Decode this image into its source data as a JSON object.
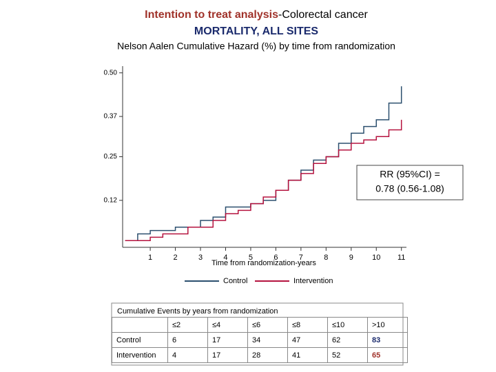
{
  "chart_data": {
    "type": "step",
    "title": {
      "part1": "Intention to treat analysis",
      "part2": "-Colorectal cancer",
      "line2": "MORTALITY, ALL SITES"
    },
    "subtitle": "Nelson Aalen Cumulative Hazard (%) by time from randomization",
    "x_label": "Time from randomization-years",
    "x": [
      0,
      0.5,
      1,
      1.5,
      2,
      2.5,
      3,
      3.5,
      4,
      4.5,
      5,
      5.5,
      6,
      6.5,
      7,
      7.5,
      8,
      8.5,
      9,
      9.5,
      10,
      10.5,
      11
    ],
    "series": [
      {
        "name": "Control",
        "color": "#2b4f6e",
        "values": [
          0,
          0.02,
          0.03,
          0.03,
          0.04,
          0.04,
          0.06,
          0.07,
          0.1,
          0.1,
          0.11,
          0.12,
          0.15,
          0.18,
          0.21,
          0.24,
          0.25,
          0.29,
          0.32,
          0.34,
          0.36,
          0.41,
          0.46
        ]
      },
      {
        "name": "Intervention",
        "color": "#b5123e",
        "values": [
          0,
          0,
          0.01,
          0.02,
          0.02,
          0.04,
          0.04,
          0.06,
          0.08,
          0.09,
          0.11,
          0.13,
          0.15,
          0.18,
          0.2,
          0.23,
          0.25,
          0.27,
          0.29,
          0.3,
          0.31,
          0.33,
          0.36
        ]
      }
    ],
    "xlim": [
      -0.1,
      11.2
    ],
    "xticks": [
      1,
      2,
      3,
      4,
      5,
      6,
      7,
      8,
      9,
      10,
      11
    ],
    "ylim": [
      -0.02,
      0.52
    ],
    "yticks": [
      {
        "value": 0.12,
        "label": "0.12"
      },
      {
        "value": 0.25,
        "label": "0.25"
      },
      {
        "value": 0.37,
        "label": "0.37"
      },
      {
        "value": 0.5,
        "label": "0.50"
      }
    ],
    "annotation": {
      "line1": "RR (95%CI) =",
      "line2": "0.78 (0.56-1.08)"
    }
  },
  "table": {
    "caption": "Cumulative Events by years from randomization",
    "header": [
      "≤2",
      "≤4",
      "≤6",
      "≤8",
      "≤10",
      ">10"
    ],
    "rows": [
      [
        "Control",
        "6",
        "17",
        "34",
        "47",
        "62",
        "83"
      ],
      [
        "Intervention",
        "4",
        "17",
        "28",
        "41",
        "52",
        "65"
      ]
    ]
  }
}
